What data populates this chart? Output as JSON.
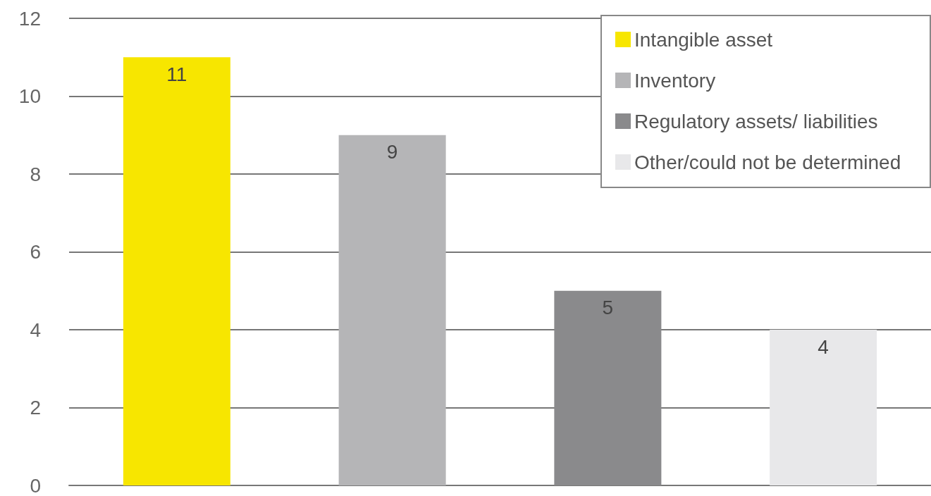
{
  "chart_data": {
    "type": "bar",
    "categories": [
      null,
      null,
      null,
      null
    ],
    "series": [
      {
        "name": "Intangible asset",
        "color": "#f7e600",
        "values": [
          11,
          null,
          null,
          null
        ]
      },
      {
        "name": "Inventory",
        "color": "#b5b5b7",
        "values": [
          null,
          9,
          null,
          null
        ]
      },
      {
        "name": "Regulatory assets/ liabilities",
        "color": "#8a8a8c",
        "values": [
          null,
          null,
          5,
          null
        ]
      },
      {
        "name": "Other/could not be determined",
        "color": "#e8e8ea",
        "values": [
          null,
          null,
          null,
          4
        ]
      }
    ],
    "ylim": [
      0,
      12
    ],
    "yticks": [
      0,
      2,
      4,
      6,
      8,
      10,
      12
    ],
    "grid": "y",
    "legend": "top right",
    "data_labels": true
  }
}
